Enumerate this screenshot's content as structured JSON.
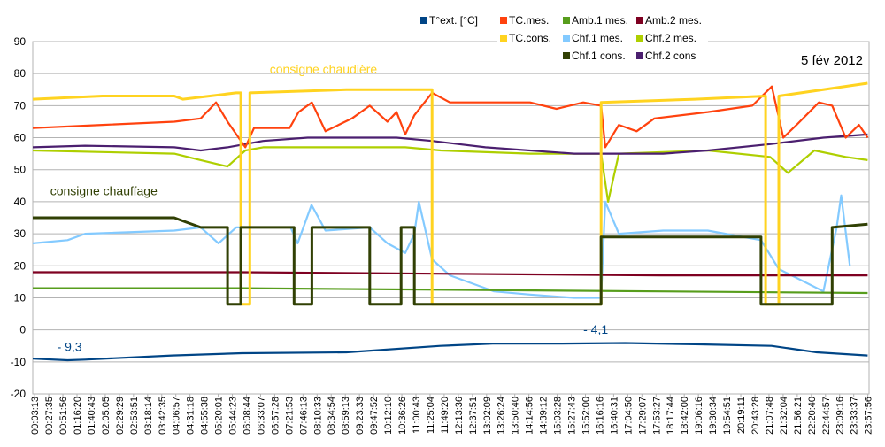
{
  "chart_data": {
    "type": "line",
    "title": "5 fév 2012",
    "xlabel": "",
    "ylabel": "",
    "ylim": [
      -20,
      90
    ],
    "yticks": [
      -20,
      -10,
      0,
      10,
      20,
      30,
      40,
      50,
      60,
      70,
      80,
      90
    ],
    "grid": true,
    "legend_position": "top-right",
    "x_tick_labels": [
      "00:03:13",
      "00:27:35",
      "00:51:56",
      "01:16:20",
      "01:40:43",
      "02:05:05",
      "02:29:29",
      "02:53:51",
      "03:18:14",
      "03:42:35",
      "04:06:57",
      "04:31:18",
      "04:55:38",
      "05:20:01",
      "05:44:23",
      "06:08:44",
      "06:33:07",
      "06:57:28",
      "07:21:53",
      "07:46:13",
      "08:10:33",
      "08:34:54",
      "08:59:13",
      "09:23:33",
      "09:47:52",
      "10:12:10",
      "10:36:26",
      "11:00:43",
      "11:25:04",
      "11:49:20",
      "12:13:36",
      "12:37:51",
      "13:02:09",
      "13:26:24",
      "13:50:40",
      "14:14:56",
      "14:39:12",
      "15:03:28",
      "15:27:43",
      "15:52:00",
      "16:16:16",
      "16:40:31",
      "17:04:50",
      "17:29:07",
      "17:53:27",
      "18:17:44",
      "18:42:00",
      "19:06:16",
      "19:30:34",
      "19:54:51",
      "20:19:11",
      "20:43:28",
      "21:07:48",
      "21:32:04",
      "21:56:21",
      "22:20:40",
      "22:44:57",
      "23:09:16",
      "23:33:37",
      "23:57:56"
    ],
    "x_unit": "hours",
    "series": [
      {
        "name": "Chf.1 mes.",
        "color": "#83caff",
        "points": [
          [
            0,
            27
          ],
          [
            1,
            28
          ],
          [
            1.5,
            30
          ],
          [
            4.06,
            31
          ],
          [
            4.82,
            32
          ],
          [
            5.33,
            27
          ],
          [
            5.84,
            32
          ],
          [
            7.4,
            32
          ],
          [
            7.6,
            27
          ],
          [
            8,
            39
          ],
          [
            8.4,
            31
          ],
          [
            9.67,
            32
          ],
          [
            10.18,
            27
          ],
          [
            10.69,
            24
          ],
          [
            10.95,
            30
          ],
          [
            11.08,
            40
          ],
          [
            11.46,
            22
          ],
          [
            11.97,
            17
          ],
          [
            12.99,
            13
          ],
          [
            13.24,
            12
          ],
          [
            14.27,
            11
          ],
          [
            15.54,
            10
          ],
          [
            16.31,
            10
          ],
          [
            16.43,
            40
          ],
          [
            16.82,
            30
          ],
          [
            18.09,
            31
          ],
          [
            19.37,
            31
          ],
          [
            20.9,
            28
          ],
          [
            21.41,
            19
          ],
          [
            22.69,
            12
          ],
          [
            23.07,
            32
          ],
          [
            23.2,
            42
          ],
          [
            23.45,
            20
          ]
        ]
      },
      {
        "name": "Chf.2 mes.",
        "color": "#aecf00",
        "points": [
          [
            0,
            56
          ],
          [
            2,
            55.5
          ],
          [
            4.06,
            55
          ],
          [
            4.82,
            53
          ],
          [
            5.59,
            51
          ],
          [
            6.1,
            56
          ],
          [
            6.61,
            57
          ],
          [
            10.69,
            57
          ],
          [
            11.71,
            56
          ],
          [
            14.27,
            55
          ],
          [
            16.31,
            55
          ],
          [
            16.51,
            40
          ],
          [
            16.82,
            55
          ],
          [
            19.37,
            56
          ],
          [
            21.16,
            54
          ],
          [
            21.67,
            49
          ],
          [
            22.43,
            56
          ],
          [
            23.33,
            54
          ],
          [
            23.96,
            53
          ]
        ]
      },
      {
        "name": "Chf.2 cons",
        "color": "#4b1f6f",
        "points": [
          [
            0,
            57
          ],
          [
            1.5,
            57.5
          ],
          [
            4.06,
            57
          ],
          [
            4.82,
            56
          ],
          [
            5.59,
            57
          ],
          [
            6.61,
            59
          ],
          [
            7.89,
            60
          ],
          [
            10.44,
            60
          ],
          [
            11.46,
            59
          ],
          [
            12.99,
            57
          ],
          [
            15.54,
            55
          ],
          [
            18.09,
            55
          ],
          [
            19.37,
            56
          ],
          [
            21.16,
            58
          ],
          [
            22.69,
            60
          ],
          [
            23.96,
            61
          ]
        ]
      },
      {
        "name": "Amb.2 mes.",
        "color": "#7e0021",
        "points": [
          [
            0,
            18
          ],
          [
            6,
            18
          ],
          [
            12,
            17.5
          ],
          [
            18,
            17
          ],
          [
            23.96,
            17
          ]
        ]
      },
      {
        "name": "Amb.1 mes.",
        "color": "#579d1c",
        "points": [
          [
            0,
            13
          ],
          [
            6,
            13
          ],
          [
            12,
            12.5
          ],
          [
            18,
            12
          ],
          [
            23.96,
            11.5
          ]
        ]
      },
      {
        "name": "TC.mes.",
        "color": "#ff420e",
        "points": [
          [
            0,
            63
          ],
          [
            2,
            64
          ],
          [
            4.06,
            65
          ],
          [
            4.82,
            66
          ],
          [
            5.26,
            71
          ],
          [
            5.59,
            65
          ],
          [
            6.1,
            57
          ],
          [
            6.35,
            63
          ],
          [
            7.37,
            63
          ],
          [
            7.63,
            68
          ],
          [
            8.01,
            71
          ],
          [
            8.4,
            62
          ],
          [
            9.16,
            66
          ],
          [
            9.67,
            70
          ],
          [
            10.18,
            65
          ],
          [
            10.44,
            68
          ],
          [
            10.69,
            61
          ],
          [
            10.95,
            67
          ],
          [
            11.46,
            74
          ],
          [
            11.97,
            71
          ],
          [
            14.27,
            71
          ],
          [
            15.03,
            69
          ],
          [
            15.8,
            71
          ],
          [
            16.31,
            70
          ],
          [
            16.43,
            57
          ],
          [
            16.82,
            64
          ],
          [
            17.33,
            62
          ],
          [
            17.84,
            66
          ],
          [
            19.37,
            68
          ],
          [
            20.65,
            70
          ],
          [
            21.21,
            76
          ],
          [
            21.54,
            60
          ],
          [
            21.92,
            64
          ],
          [
            22.56,
            71
          ],
          [
            22.94,
            70
          ],
          [
            23.33,
            60
          ],
          [
            23.71,
            64
          ],
          [
            23.96,
            60
          ]
        ]
      },
      {
        "name": "TC.cons.",
        "color": "#ffd320",
        "points": [
          [
            0,
            72
          ],
          [
            2,
            73
          ],
          [
            4.06,
            73
          ],
          [
            4.31,
            72
          ],
          [
            5.84,
            74
          ],
          [
            5.97,
            74
          ],
          [
            5.97,
            8
          ],
          [
            6.23,
            8
          ],
          [
            6.23,
            74
          ],
          [
            9,
            75
          ],
          [
            11.46,
            75
          ],
          [
            11.46,
            8
          ],
          [
            16.31,
            8
          ],
          [
            16.31,
            71
          ],
          [
            19,
            72
          ],
          [
            21.03,
            73
          ],
          [
            21.03,
            8
          ],
          [
            21.41,
            8
          ],
          [
            21.41,
            73
          ],
          [
            23.96,
            77
          ]
        ]
      },
      {
        "name": "Chf.1 cons.",
        "color": "#314004",
        "points": [
          [
            0,
            35
          ],
          [
            4.06,
            35
          ],
          [
            4.31,
            34
          ],
          [
            4.82,
            32
          ],
          [
            5.59,
            32
          ],
          [
            5.59,
            8
          ],
          [
            5.97,
            8
          ],
          [
            5.97,
            32
          ],
          [
            7.5,
            32
          ],
          [
            7.5,
            8
          ],
          [
            8.01,
            8
          ],
          [
            8.01,
            32
          ],
          [
            9.67,
            32
          ],
          [
            9.67,
            8
          ],
          [
            10.57,
            8
          ],
          [
            10.57,
            32
          ],
          [
            10.95,
            32
          ],
          [
            10.95,
            8
          ],
          [
            16.31,
            8
          ],
          [
            16.31,
            29
          ],
          [
            20.9,
            29
          ],
          [
            20.9,
            8
          ],
          [
            22.94,
            8
          ],
          [
            22.94,
            32
          ],
          [
            23.96,
            33
          ]
        ]
      },
      {
        "name": "T°ext. [°C]",
        "color": "#004586",
        "points": [
          [
            0,
            -9
          ],
          [
            1,
            -9.5
          ],
          [
            1.5,
            -9.3
          ],
          [
            4,
            -8
          ],
          [
            6,
            -7.3
          ],
          [
            9,
            -7
          ],
          [
            11.7,
            -5
          ],
          [
            13.2,
            -4.3
          ],
          [
            15,
            -4.3
          ],
          [
            17,
            -4.1
          ],
          [
            19,
            -4.5
          ],
          [
            21.2,
            -5
          ],
          [
            22.5,
            -7
          ],
          [
            23.96,
            -8
          ]
        ]
      }
    ],
    "legend": [
      "T°ext. [°C]",
      "TC.mes.",
      "Amb.1 mes.",
      "Amb.2 mes.",
      "TC.cons.",
      "Chf.1 mes.",
      "Chf.2 mes.",
      "Chf.1 cons.",
      "Chf.2 cons"
    ],
    "annotations": [
      {
        "text": "consigne chaudière",
        "color": "#ffd320",
        "at": [
          6.8,
          80
        ]
      },
      {
        "text": "consigne chauffage",
        "color": "#314004",
        "at": [
          0.5,
          42
        ]
      },
      {
        "text": "- 9,3",
        "color": "#004586",
        "at": [
          0.7,
          -6.6
        ]
      },
      {
        "text": "- 4,1",
        "color": "#004586",
        "at": [
          15.8,
          -1.2
        ]
      }
    ]
  }
}
